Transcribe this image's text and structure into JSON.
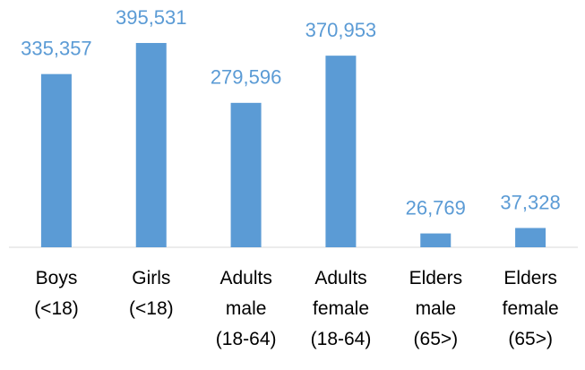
{
  "chart_data": {
    "type": "bar",
    "categories": [
      "Boys\n(<18)",
      "Girls\n(<18)",
      "Adults\nmale\n(18-64)",
      "Adults\nfemale\n(18-64)",
      "Elders\nmale\n(65>)",
      "Elders\nfemale\n(65>)"
    ],
    "values": [
      335357,
      395531,
      279596,
      370953,
      26769,
      37328
    ],
    "value_labels": [
      "335,357",
      "395,531",
      "279,596",
      "370,953",
      "26,769",
      "37,328"
    ],
    "color": "#5b9bd5",
    "ylim": [
      0,
      400000
    ]
  }
}
